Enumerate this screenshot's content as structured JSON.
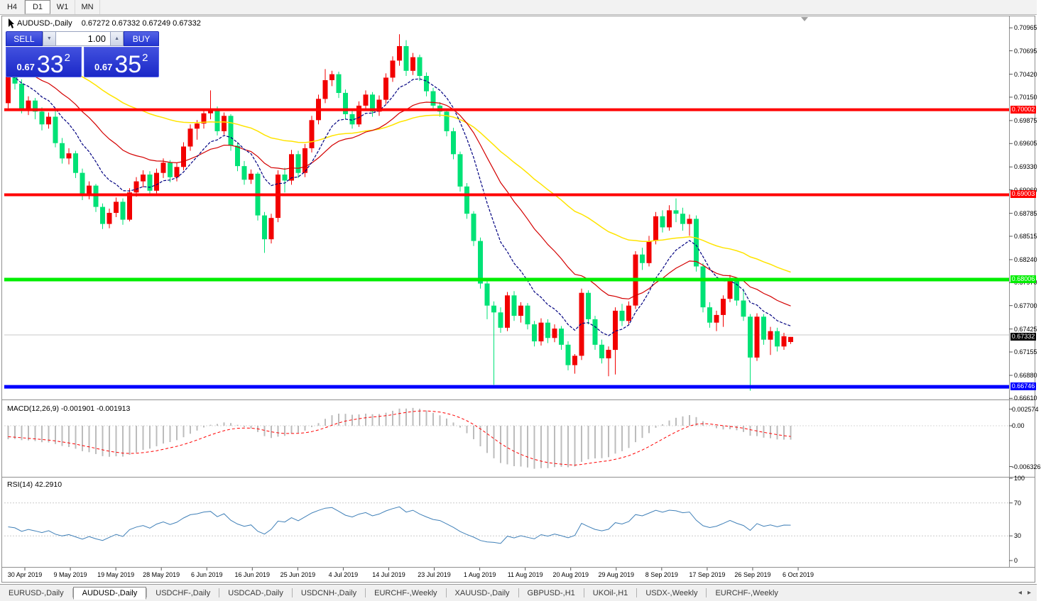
{
  "toolbar": {
    "timeframes": [
      {
        "label": "H4",
        "active": false
      },
      {
        "label": "D1",
        "active": true
      },
      {
        "label": "W1",
        "active": false
      },
      {
        "label": "MN",
        "active": false
      }
    ]
  },
  "chart": {
    "symbol_label": "AUDUSD-,Daily",
    "quote": "0.67272 0.67332 0.67249 0.67332",
    "trade_panel": {
      "sell_label": "SELL",
      "buy_label": "BUY",
      "volume": "1.00",
      "sell_price_prefix": "0.67",
      "sell_price_big": "33",
      "sell_price_sup": "2",
      "buy_price_prefix": "0.67",
      "buy_price_big": "35",
      "buy_price_sup": "2"
    },
    "colors": {
      "candle_up": "#f20000",
      "candle_down": "#00e276",
      "ma_fast": "#000080",
      "ma_mid": "#d40000",
      "ma_slow": "#ffe400",
      "res_line": "#ff0000",
      "sup_line_green": "#00ee00",
      "sup_line_blue": "#0000ff",
      "gray_line": "#c8c8c8",
      "macd_hist": "#bcbcbc",
      "macd_signal": "#ff0000",
      "rsi_line": "#4080b8",
      "current_tag_bg": "#000000"
    },
    "price_axis_labels": [
      "0.70965",
      "0.70695",
      "0.70420",
      "0.70150",
      "0.69875",
      "0.69605",
      "0.69330",
      "0.69060",
      "0.68785",
      "0.68515",
      "0.68240",
      "0.67970",
      "0.67700",
      "0.67425",
      "0.67155",
      "0.66880",
      "0.66610"
    ],
    "hlines": [
      {
        "price": 0.70002,
        "label": "0.70002",
        "color": "#ff0000",
        "width": 4,
        "text": "#ffffff"
      },
      {
        "price": 0.69003,
        "label": "0.69003",
        "color": "#ff0000",
        "width": 4,
        "text": "#ffffff"
      },
      {
        "price": 0.68006,
        "label": "0.68006",
        "color": "#00ee00",
        "width": 5,
        "text": "#ffffff"
      },
      {
        "price": 0.66746,
        "label": "0.66746",
        "color": "#0000ff",
        "width": 5,
        "text": "#ffffff"
      },
      {
        "price": 0.67355,
        "label": null,
        "color": "#c8c8c8",
        "width": 1,
        "text": null
      }
    ],
    "current_price_tag": {
      "label": "0.67332",
      "price": 0.67332
    },
    "date_labels": [
      "30 Apr 2019",
      "9 May 2019",
      "19 May 2019",
      "28 May 2019",
      "6 Jun 2019",
      "16 Jun 2019",
      "25 Jun 2019",
      "4 Jul 2019",
      "14 Jul 2019",
      "23 Jul 2019",
      "1 Aug 2019",
      "11 Aug 2019",
      "20 Aug 2019",
      "29 Aug 2019",
      "8 Sep 2019",
      "17 Sep 2019",
      "26 Sep 2019",
      "6 Oct 2019"
    ],
    "candles": [
      [
        0.7008,
        0.7046,
        0.7002,
        0.7039
      ],
      [
        0.7039,
        0.7049,
        0.7024,
        0.7031
      ],
      [
        0.7031,
        0.7036,
        0.6996,
        0.7001
      ],
      [
        0.7001,
        0.7016,
        0.6994,
        0.7011
      ],
      [
        0.7011,
        0.7014,
        0.6989,
        0.6998
      ],
      [
        0.6998,
        0.7003,
        0.6976,
        0.6983
      ],
      [
        0.6983,
        0.6997,
        0.6978,
        0.6992
      ],
      [
        0.6992,
        0.6999,
        0.6956,
        0.6961
      ],
      [
        0.6961,
        0.6967,
        0.6937,
        0.6943
      ],
      [
        0.6943,
        0.6955,
        0.6936,
        0.6949
      ],
      [
        0.6949,
        0.6952,
        0.692,
        0.6926
      ],
      [
        0.6926,
        0.6931,
        0.6894,
        0.69
      ],
      [
        0.69,
        0.6916,
        0.6895,
        0.6911
      ],
      [
        0.6911,
        0.6913,
        0.688,
        0.6886
      ],
      [
        0.6886,
        0.689,
        0.686,
        0.6866
      ],
      [
        0.6866,
        0.6884,
        0.6861,
        0.6879
      ],
      [
        0.6879,
        0.6897,
        0.6874,
        0.6892
      ],
      [
        0.6892,
        0.6896,
        0.6865,
        0.6871
      ],
      [
        0.6871,
        0.6908,
        0.6869,
        0.6903
      ],
      [
        0.6903,
        0.6921,
        0.6898,
        0.6916
      ],
      [
        0.6916,
        0.6929,
        0.6909,
        0.6924
      ],
      [
        0.6924,
        0.6928,
        0.6899,
        0.6905
      ],
      [
        0.6905,
        0.6931,
        0.6902,
        0.6926
      ],
      [
        0.6926,
        0.6943,
        0.692,
        0.6938
      ],
      [
        0.6938,
        0.6941,
        0.6915,
        0.6921
      ],
      [
        0.6921,
        0.6938,
        0.6916,
        0.6933
      ],
      [
        0.6933,
        0.6962,
        0.6929,
        0.6957
      ],
      [
        0.6957,
        0.6983,
        0.6952,
        0.6978
      ],
      [
        0.6978,
        0.6988,
        0.6965,
        0.6984
      ],
      [
        0.6984,
        0.7001,
        0.6978,
        0.6996
      ],
      [
        0.6996,
        0.7023,
        0.6989,
        0.7
      ],
      [
        0.7,
        0.7004,
        0.697,
        0.6975
      ],
      [
        0.6975,
        0.6997,
        0.6971,
        0.6993
      ],
      [
        0.6993,
        0.6995,
        0.6952,
        0.6958
      ],
      [
        0.6958,
        0.6962,
        0.6928,
        0.6934
      ],
      [
        0.6934,
        0.694,
        0.6912,
        0.6918
      ],
      [
        0.6918,
        0.693,
        0.6913,
        0.6925
      ],
      [
        0.6925,
        0.6927,
        0.687,
        0.6876
      ],
      [
        0.6876,
        0.688,
        0.6832,
        0.6848
      ],
      [
        0.6848,
        0.6878,
        0.6843,
        0.6873
      ],
      [
        0.6873,
        0.6929,
        0.6868,
        0.6924
      ],
      [
        0.6924,
        0.6932,
        0.6903,
        0.6917
      ],
      [
        0.6917,
        0.6953,
        0.6912,
        0.6948
      ],
      [
        0.6948,
        0.6952,
        0.692,
        0.6926
      ],
      [
        0.6926,
        0.696,
        0.6921,
        0.6955
      ],
      [
        0.6955,
        0.6993,
        0.695,
        0.6988
      ],
      [
        0.6988,
        0.7018,
        0.6983,
        0.7013
      ],
      [
        0.7013,
        0.7048,
        0.7008,
        0.7035
      ],
      [
        0.7035,
        0.7046,
        0.7028,
        0.7042
      ],
      [
        0.7042,
        0.7045,
        0.7014,
        0.702
      ],
      [
        0.702,
        0.7024,
        0.6989,
        0.6995
      ],
      [
        0.6995,
        0.7,
        0.6978,
        0.6983
      ],
      [
        0.6983,
        0.701,
        0.698,
        0.7005
      ],
      [
        0.7005,
        0.7023,
        0.7,
        0.7018
      ],
      [
        0.7018,
        0.7021,
        0.6992,
        0.6998
      ],
      [
        0.6998,
        0.7017,
        0.6993,
        0.7012
      ],
      [
        0.7012,
        0.7043,
        0.7007,
        0.7038
      ],
      [
        0.7038,
        0.7063,
        0.7033,
        0.7058
      ],
      [
        0.7058,
        0.7089,
        0.7052,
        0.7075
      ],
      [
        0.7075,
        0.7082,
        0.704,
        0.7046
      ],
      [
        0.7046,
        0.7067,
        0.7041,
        0.7062
      ],
      [
        0.7062,
        0.7065,
        0.7034,
        0.704
      ],
      [
        0.704,
        0.7044,
        0.7016,
        0.7022
      ],
      [
        0.7022,
        0.7026,
        0.6999,
        0.7005
      ],
      [
        0.7005,
        0.7009,
        0.6992,
        0.6998
      ],
      [
        0.6998,
        0.7001,
        0.6969,
        0.6975
      ],
      [
        0.6975,
        0.6979,
        0.6942,
        0.6948
      ],
      [
        0.6948,
        0.6951,
        0.6904,
        0.691
      ],
      [
        0.691,
        0.6914,
        0.6872,
        0.6878
      ],
      [
        0.6878,
        0.6881,
        0.684,
        0.6846
      ],
      [
        0.6846,
        0.685,
        0.679,
        0.6796
      ],
      [
        0.6796,
        0.68,
        0.6754,
        0.677
      ],
      [
        0.677,
        0.6775,
        0.6677,
        0.6762
      ],
      [
        0.6762,
        0.6768,
        0.6738,
        0.6744
      ],
      [
        0.6744,
        0.6786,
        0.674,
        0.6782
      ],
      [
        0.6782,
        0.6787,
        0.6752,
        0.6758
      ],
      [
        0.6758,
        0.6774,
        0.675,
        0.677
      ],
      [
        0.677,
        0.6773,
        0.6742,
        0.6748
      ],
      [
        0.6748,
        0.6752,
        0.6722,
        0.6728
      ],
      [
        0.6728,
        0.6755,
        0.6723,
        0.675
      ],
      [
        0.675,
        0.6754,
        0.6726,
        0.6732
      ],
      [
        0.6732,
        0.6748,
        0.6727,
        0.6743
      ],
      [
        0.6743,
        0.6746,
        0.6718,
        0.6724
      ],
      [
        0.6724,
        0.6728,
        0.6694,
        0.67
      ],
      [
        0.67,
        0.6713,
        0.669,
        0.6711
      ],
      [
        0.6711,
        0.679,
        0.6706,
        0.6785
      ],
      [
        0.6785,
        0.6788,
        0.6748,
        0.6754
      ],
      [
        0.6754,
        0.6758,
        0.6718,
        0.6724
      ],
      [
        0.6724,
        0.673,
        0.6702,
        0.6708
      ],
      [
        0.6708,
        0.6722,
        0.6687,
        0.6718
      ],
      [
        0.6718,
        0.6768,
        0.6689,
        0.6764
      ],
      [
        0.6764,
        0.6772,
        0.6746,
        0.6752
      ],
      [
        0.6752,
        0.6775,
        0.6748,
        0.677
      ],
      [
        0.677,
        0.6834,
        0.6766,
        0.683
      ],
      [
        0.683,
        0.6838,
        0.6812,
        0.682
      ],
      [
        0.682,
        0.6852,
        0.6816,
        0.6846
      ],
      [
        0.6846,
        0.688,
        0.6842,
        0.6875
      ],
      [
        0.6875,
        0.6882,
        0.6856,
        0.6862
      ],
      [
        0.6862,
        0.6888,
        0.6858,
        0.6882
      ],
      [
        0.6882,
        0.6896,
        0.6868,
        0.6878
      ],
      [
        0.6878,
        0.6885,
        0.6858,
        0.6866
      ],
      [
        0.6866,
        0.6877,
        0.6852,
        0.6872
      ],
      [
        0.6872,
        0.6876,
        0.681,
        0.6816
      ],
      [
        0.6816,
        0.682,
        0.6762,
        0.6768
      ],
      [
        0.6768,
        0.6774,
        0.6744,
        0.675
      ],
      [
        0.675,
        0.6764,
        0.674,
        0.6759
      ],
      [
        0.6759,
        0.6782,
        0.6745,
        0.6778
      ],
      [
        0.6778,
        0.6806,
        0.6774,
        0.68
      ],
      [
        0.68,
        0.6803,
        0.677,
        0.6776
      ],
      [
        0.6776,
        0.679,
        0.6752,
        0.6757
      ],
      [
        0.6757,
        0.676,
        0.667,
        0.6709
      ],
      [
        0.6709,
        0.6761,
        0.6705,
        0.6757
      ],
      [
        0.6757,
        0.676,
        0.6724,
        0.673
      ],
      [
        0.673,
        0.6745,
        0.6712,
        0.674
      ],
      [
        0.674,
        0.6744,
        0.6716,
        0.6722
      ],
      [
        0.6722,
        0.6738,
        0.6718,
        0.6734
      ],
      [
        0.67272,
        0.67332,
        0.67249,
        0.67332
      ]
    ]
  },
  "macd": {
    "label": "MACD(12,26,9) -0.001901 -0.001913",
    "axis": [
      {
        "text": "0.002574",
        "value": 0.002574
      },
      {
        "text": "0.00",
        "value": 0
      },
      {
        "text": "-0.006326",
        "value": -0.006326
      }
    ]
  },
  "rsi": {
    "label": "RSI(14) 42.2910",
    "axis": [
      {
        "text": "100",
        "value": 100
      },
      {
        "text": "70",
        "value": 70
      },
      {
        "text": "30",
        "value": 30
      },
      {
        "text": "0",
        "value": 0
      }
    ],
    "levels": [
      70,
      30
    ]
  },
  "tabs": {
    "items": [
      {
        "label": "EURUSD-,Daily",
        "active": false
      },
      {
        "label": "AUDUSD-,Daily",
        "active": true
      },
      {
        "label": "USDCHF-,Daily",
        "active": false
      },
      {
        "label": "USDCAD-,Daily",
        "active": false
      },
      {
        "label": "USDCNH-,Daily",
        "active": false
      },
      {
        "label": "EURCHF-,Weekly",
        "active": false
      },
      {
        "label": "XAUUSD-,Daily",
        "active": false
      },
      {
        "label": "GBPUSD-,H1",
        "active": false
      },
      {
        "label": "UKOil-,H1",
        "active": false
      },
      {
        "label": "USDX-,Weekly",
        "active": false
      },
      {
        "label": "EURCHF-,Weekly",
        "active": false
      }
    ],
    "scroll_left_icon": "◂",
    "scroll_right_icon": "▸"
  }
}
